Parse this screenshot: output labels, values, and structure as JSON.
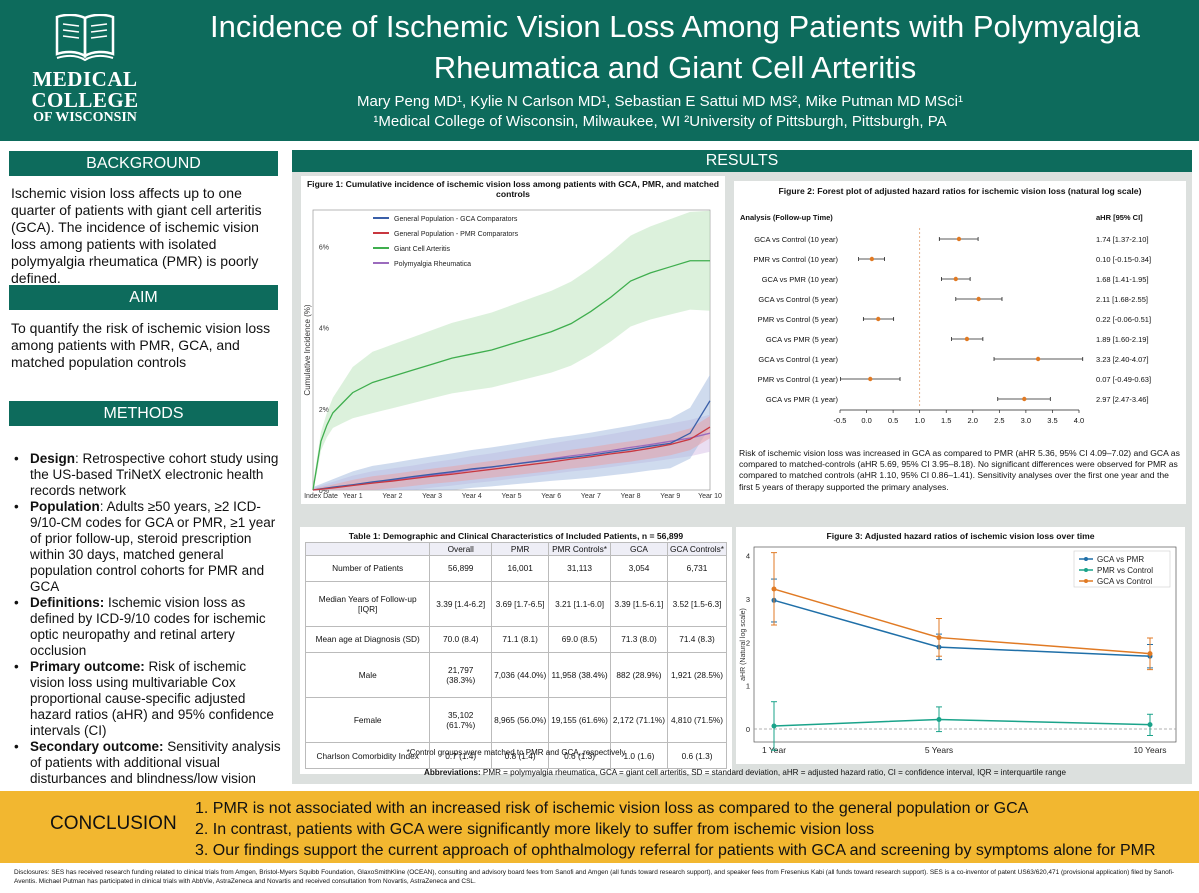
{
  "header": {
    "logo_line1": "MEDICAL",
    "logo_line2": "COLLEGE",
    "logo_line3": "OF WISCONSIN",
    "title_line1": "Incidence of Ischemic Vision Loss Among Patients with Polymyalgia",
    "title_line2": "Rheumatica and Giant Cell Arteritis",
    "authors": "Mary Peng MD¹, Kylie N Carlson MD¹, Sebastian E Sattui MD MS², Mike Putman MD MSci¹",
    "affiliations": "¹Medical College of Wisconsin, Milwaukee, WI ²University of Pittsburgh, Pittsburgh, PA"
  },
  "background": {
    "heading": "BACKGROUND",
    "text": "Ischemic vision loss affects up to one quarter of patients with giant cell arteritis (GCA). The incidence of ischemic vision loss among patients with isolated polymyalgia rheumatica (PMR) is poorly defined."
  },
  "aim": {
    "heading": "AIM",
    "text": "To quantify the risk of ischemic vision loss among patients with PMR, GCA, and matched population controls"
  },
  "methods": {
    "heading": "METHODS",
    "items": [
      {
        "label": "Design",
        "text": ": Retrospective cohort study using the US-based TriNetX electronic health records network"
      },
      {
        "label": "Population",
        "text": ": Adults ≥50 years, ≥2 ICD-9/10-CM codes for GCA or PMR, ≥1 year of prior follow-up, steroid prescription within 30 days, matched general population control cohorts for PMR and GCA"
      },
      {
        "label": "Definitions:",
        "text": " Ischemic vision loss as defined by ICD-9/10 codes for ischemic optic neuropathy and retinal artery occlusion"
      },
      {
        "label": "Primary outcome:",
        "text": " Risk of ischemic vision loss using multivariable Cox proportional cause-specific adjusted hazard ratios (aHR) and 95% confidence intervals (CI)"
      },
      {
        "label": "Secondary outcome:",
        "text": " Sensitivity analysis of patients with additional visual disturbances and blindness/low vision"
      }
    ]
  },
  "results": {
    "heading": "RESULTS",
    "abbreviations_label": "Abbreviations:",
    "abbreviations": " PMR = polymyalgia rheumatica, GCA = giant cell arteritis, SD = standard deviation, aHR = adjusted hazard ratio, CI = confidence interval, IQR = interquartile range"
  },
  "figure1": {
    "caption": "Figure 1: Cumulative incidence of ischemic vision loss among patients with GCA, PMR, and matched controls"
  },
  "figure2": {
    "caption": "Figure 2: Forest plot of adjusted hazard ratios for ischemic vision loss (natural log scale)",
    "col_left": "Analysis (Follow-up Time)",
    "col_right": "aHR [95% CI]",
    "text": "Risk of ischemic vision loss was increased in GCA as compared to PMR (aHR 5.36, 95% CI 4.09–7.02) and GCA as compared to matched-controls (aHR 5.69, 95% CI 3.95–8.18). No significant differences were observed for PMR as compared to matched controls (aHR 1.10, 95% CI 0.86–1.41). Sensitivity analyses over the first one year and the first 5 years of therapy supported the primary analyses."
  },
  "figure3": {
    "caption": "Figure 3: Adjusted hazard ratios of ischemic vision loss over time"
  },
  "table1": {
    "caption": "Table 1: Demographic and Clinical Characteristics of Included Patients, n = 56,899",
    "headers": [
      "",
      "Overall",
      "PMR",
      "PMR Controls*",
      "GCA",
      "GCA Controls*"
    ],
    "rows": [
      [
        "Number of Patients",
        "56,899",
        "16,001",
        "31,113",
        "3,054",
        "6,731"
      ],
      [
        "Median Years of Follow-up [IQR]",
        "3.39 [1.4-6.2]",
        "3.69 [1.7-6.5]",
        "3.21 [1.1-6.0]",
        "3.39 [1.5-6.1]",
        "3.52 [1.5-6.3]"
      ],
      [
        "Mean age at Diagnosis (SD)",
        "70.0 (8.4)",
        "71.1 (8.1)",
        "69.0 (8.5)",
        "71.3 (8.0)",
        "71.4 (8.3)"
      ],
      [
        "Male",
        "21,797 (38.3%)",
        "7,036 (44.0%)",
        "11,958 (38.4%)",
        "882 (28.9%)",
        "1,921 (28.5%)"
      ],
      [
        "Female",
        "35,102 (61.7%)",
        "8,965 (56.0%)",
        "19,155 (61.6%)",
        "2,172 (71.1%)",
        "4,810 (71.5%)"
      ],
      [
        "Charlson Comorbidity Index",
        "0.7 (1.4)",
        "0.8 (1.4)",
        "0.6 (1.3)",
        "1.0 (1.6)",
        "0.6 (1.3)"
      ]
    ],
    "footnote": "*Control groups were matched to PMR and GCA, respectively"
  },
  "conclusion": {
    "heading": "CONCLUSION",
    "items": [
      "PMR is not associated with an increased risk of ischemic vision loss as compared to the general population or GCA",
      "In contrast, patients with GCA were significantly more likely to suffer from ischemic vision loss",
      "Our findings support the current approach of ophthalmology referral for patients with GCA and screening by symptoms alone for PMR"
    ]
  },
  "disclosures": "Disclosures: SES has received research funding related to clinical trials from Amgen, Bristol-Myers Squibb Foundation, GlaxoSmithKline (OCEAN), consulting and advisory board fees from Sanofi and Amgen (all funds toward research support), and speaker fees from Fresenius Kabi (all funds toward research support). SES is a co-inventor of patent US63/620,471 (provisional application) filed by Sanofi-Aventis. Michael Putman has participated in clinical trials with AbbVie, AstraZeneca and Novartis and received consultation from Novartis, AstraZeneca and CSL.",
  "chart_data": [
    {
      "type": "line",
      "title": "Figure 1: Cumulative incidence of ischemic vision loss among patients with GCA, PMR, and matched controls",
      "ylabel": "Cumulative Incidence (%)",
      "xlabel": "",
      "categories": [
        "Index Date",
        "Year 1",
        "Year 2",
        "Year 3",
        "Year 4",
        "Year 5",
        "Year 6",
        "Year 7",
        "Year 8",
        "Year 9",
        "Year 10"
      ],
      "yticks": [
        "0%",
        "2%",
        "4%",
        "6%"
      ],
      "ylim": [
        0,
        6.9
      ],
      "legend": "top-left",
      "series": [
        {
          "name": "General Population - GCA Comparators",
          "color": "#3a5fa8",
          "x": [
            0,
            0.5,
            1,
            1.5,
            2,
            2.5,
            3,
            3.5,
            4,
            4.5,
            5,
            5.5,
            6,
            6.5,
            7,
            7.5,
            8,
            8.5,
            9,
            9.5,
            10
          ],
          "values": [
            0,
            0.07,
            0.13,
            0.2,
            0.26,
            0.33,
            0.39,
            0.45,
            0.52,
            0.57,
            0.63,
            0.69,
            0.75,
            0.8,
            0.86,
            0.93,
            1.0,
            1.08,
            1.15,
            1.4,
            2.2
          ]
        },
        {
          "name": "General Population - PMR Comparators",
          "color": "#c8373f",
          "x": [
            0,
            0.5,
            1,
            1.5,
            2,
            2.5,
            3,
            3.5,
            4,
            4.5,
            5,
            5.5,
            6,
            6.5,
            7,
            7.5,
            8,
            8.5,
            9,
            9.5,
            10
          ],
          "values": [
            0,
            0.05,
            0.11,
            0.17,
            0.22,
            0.28,
            0.34,
            0.39,
            0.45,
            0.51,
            0.57,
            0.63,
            0.69,
            0.76,
            0.82,
            0.89,
            0.95,
            1.03,
            1.12,
            1.25,
            1.55
          ]
        },
        {
          "name": "Giant Cell Arteritis",
          "color": "#3fae4e",
          "x": [
            0,
            0.1,
            0.2,
            0.35,
            0.5,
            0.75,
            1,
            1.5,
            2,
            2.5,
            3,
            3.5,
            4,
            4.5,
            5,
            5.5,
            6,
            6.5,
            7,
            7.5,
            8,
            8.5,
            9,
            9.5,
            10
          ],
          "values": [
            0,
            0.6,
            1.2,
            1.6,
            1.9,
            2.15,
            2.4,
            2.65,
            2.8,
            2.95,
            3.1,
            3.25,
            3.35,
            3.45,
            3.6,
            3.75,
            3.9,
            4.1,
            4.4,
            4.75,
            5.15,
            5.35,
            5.5,
            5.65,
            5.65
          ]
        },
        {
          "name": "Polymyalgia Rheumatica",
          "color": "#9b6bbd",
          "x": [
            0,
            0.5,
            1,
            1.5,
            2,
            2.5,
            3,
            3.5,
            4,
            4.5,
            5,
            5.5,
            6,
            6.5,
            7,
            7.5,
            8,
            8.5,
            9,
            9.5,
            10
          ],
          "values": [
            0,
            0.06,
            0.12,
            0.18,
            0.24,
            0.3,
            0.37,
            0.43,
            0.5,
            0.56,
            0.63,
            0.7,
            0.77,
            0.84,
            0.9,
            0.97,
            1.05,
            1.12,
            1.2,
            1.28,
            1.4
          ]
        }
      ]
    },
    {
      "type": "scatter",
      "title": "Figure 2: Forest plot of adjusted hazard ratios for ischemic vision loss (natural log scale)",
      "xlim": [
        -0.5,
        4.0
      ],
      "xticks": [
        -0.5,
        0.0,
        0.5,
        1.0,
        1.5,
        2.0,
        2.5,
        3.0,
        3.5,
        4.0
      ],
      "xtick_labels": [
        "-0.5",
        "0.0",
        "0.5",
        "1.0",
        "1.5",
        "2.0",
        "2.5",
        "3.0",
        "3.5",
        "4.0"
      ],
      "reference_line": 1.0,
      "rows": [
        {
          "label": "GCA vs Control (10 year)",
          "est": 1.74,
          "lo": 1.37,
          "hi": 2.1,
          "text": "1.74 [1.37-2.10]"
        },
        {
          "label": "PMR vs Control (10 year)",
          "est": 0.1,
          "lo": -0.15,
          "hi": 0.34,
          "text": "0.10 [-0.15-0.34]"
        },
        {
          "label": "GCA vs PMR (10 year)",
          "est": 1.68,
          "lo": 1.41,
          "hi": 1.95,
          "text": "1.68 [1.41-1.95]"
        },
        {
          "label": "GCA vs Control (5 year)",
          "est": 2.11,
          "lo": 1.68,
          "hi": 2.55,
          "text": "2.11 [1.68-2.55]"
        },
        {
          "label": "PMR vs Control (5 year)",
          "est": 0.22,
          "lo": -0.06,
          "hi": 0.51,
          "text": "0.22 [-0.06-0.51]"
        },
        {
          "label": "GCA vs PMR (5 year)",
          "est": 1.89,
          "lo": 1.6,
          "hi": 2.19,
          "text": "1.89 [1.60-2.19]"
        },
        {
          "label": "GCA vs Control (1 year)",
          "est": 3.23,
          "lo": 2.4,
          "hi": 4.07,
          "text": "3.23 [2.40-4.07]"
        },
        {
          "label": "PMR vs Control (1 year)",
          "est": 0.07,
          "lo": -0.49,
          "hi": 0.63,
          "text": "0.07 [-0.49-0.63]"
        },
        {
          "label": "GCA vs PMR (1 year)",
          "est": 2.97,
          "lo": 2.47,
          "hi": 3.46,
          "text": "2.97 [2.47-3.46]"
        }
      ]
    },
    {
      "type": "line",
      "title": "Figure 3: Adjusted hazard ratios of ischemic vision loss over time",
      "ylabel": "aHR (Natural log scale)",
      "categories": [
        "1 Year",
        "5 Years",
        "10 Years"
      ],
      "ylim": [
        -0.3,
        4.2
      ],
      "yticks": [
        0,
        1,
        2,
        3,
        4
      ],
      "legend": "top-right",
      "reference_line": 0,
      "series": [
        {
          "name": "GCA vs PMR",
          "color": "#1f6fa8",
          "values": [
            2.97,
            1.89,
            1.68
          ],
          "lo": [
            2.47,
            1.6,
            1.41
          ],
          "hi": [
            3.46,
            2.19,
            1.95
          ]
        },
        {
          "name": "PMR vs Control",
          "color": "#1aa38a",
          "values": [
            0.07,
            0.22,
            0.1
          ],
          "lo": [
            -0.49,
            -0.06,
            -0.15
          ],
          "hi": [
            0.63,
            0.51,
            0.34
          ]
        },
        {
          "name": "GCA vs Control",
          "color": "#e07a24",
          "values": [
            3.23,
            2.11,
            1.74
          ],
          "lo": [
            2.4,
            1.68,
            1.37
          ],
          "hi": [
            4.07,
            2.55,
            2.1
          ]
        }
      ]
    }
  ]
}
